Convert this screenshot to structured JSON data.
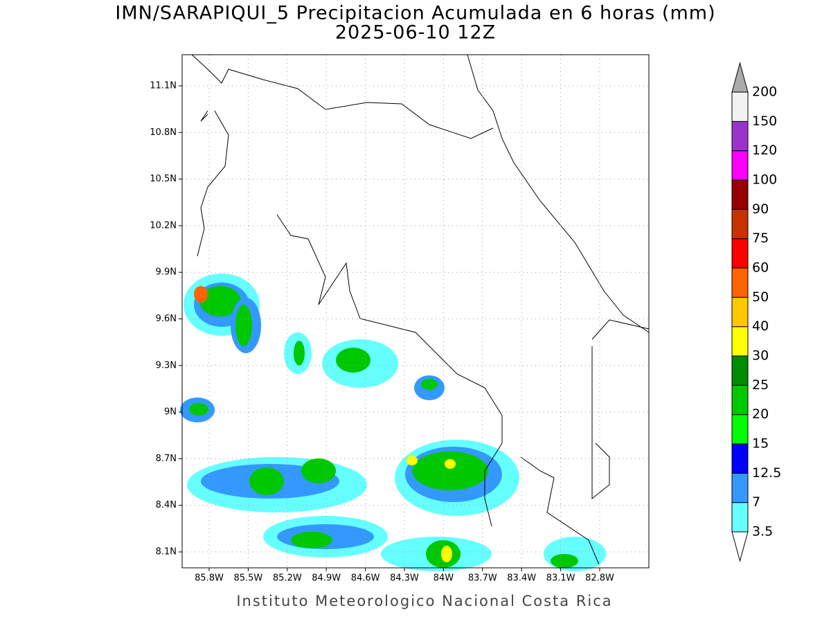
{
  "title": "IMN/SARAPIQUI_5 Precipitacion Acumulada en 6 horas (mm)",
  "subtitle": "2025-06-10 12Z",
  "map": {
    "lat_labels": [
      "11.1N",
      "10.8N",
      "10.5N",
      "10.2N",
      "9.9N",
      "9.6N",
      "9.3N",
      "9N",
      "8.7N",
      "8.4N",
      "8.1N"
    ],
    "lon_labels": [
      "85.8W",
      "85.5W",
      "85.2W",
      "84.9W",
      "84.6W",
      "84.3W",
      "84W",
      "83.7W",
      "83.4W",
      "83.1W",
      "82.8W"
    ]
  },
  "colorbar": {
    "levels": [
      3.5,
      7,
      12.5,
      15,
      20,
      25,
      30,
      40,
      50,
      60,
      75,
      90,
      100,
      120,
      150,
      200
    ],
    "colors": [
      "#ffffff",
      "#66ffff",
      "#3399ff",
      "#0000ff",
      "#00ff00",
      "#00c800",
      "#008c00",
      "#ffff00",
      "#ffc800",
      "#ff6400",
      "#ff0000",
      "#c83200",
      "#960000",
      "#ff00ff",
      "#9933cc",
      "#f2f2f2",
      "#aaaaaa"
    ]
  },
  "footer": "Instituto Meteorologico Nacional Costa Rica"
}
